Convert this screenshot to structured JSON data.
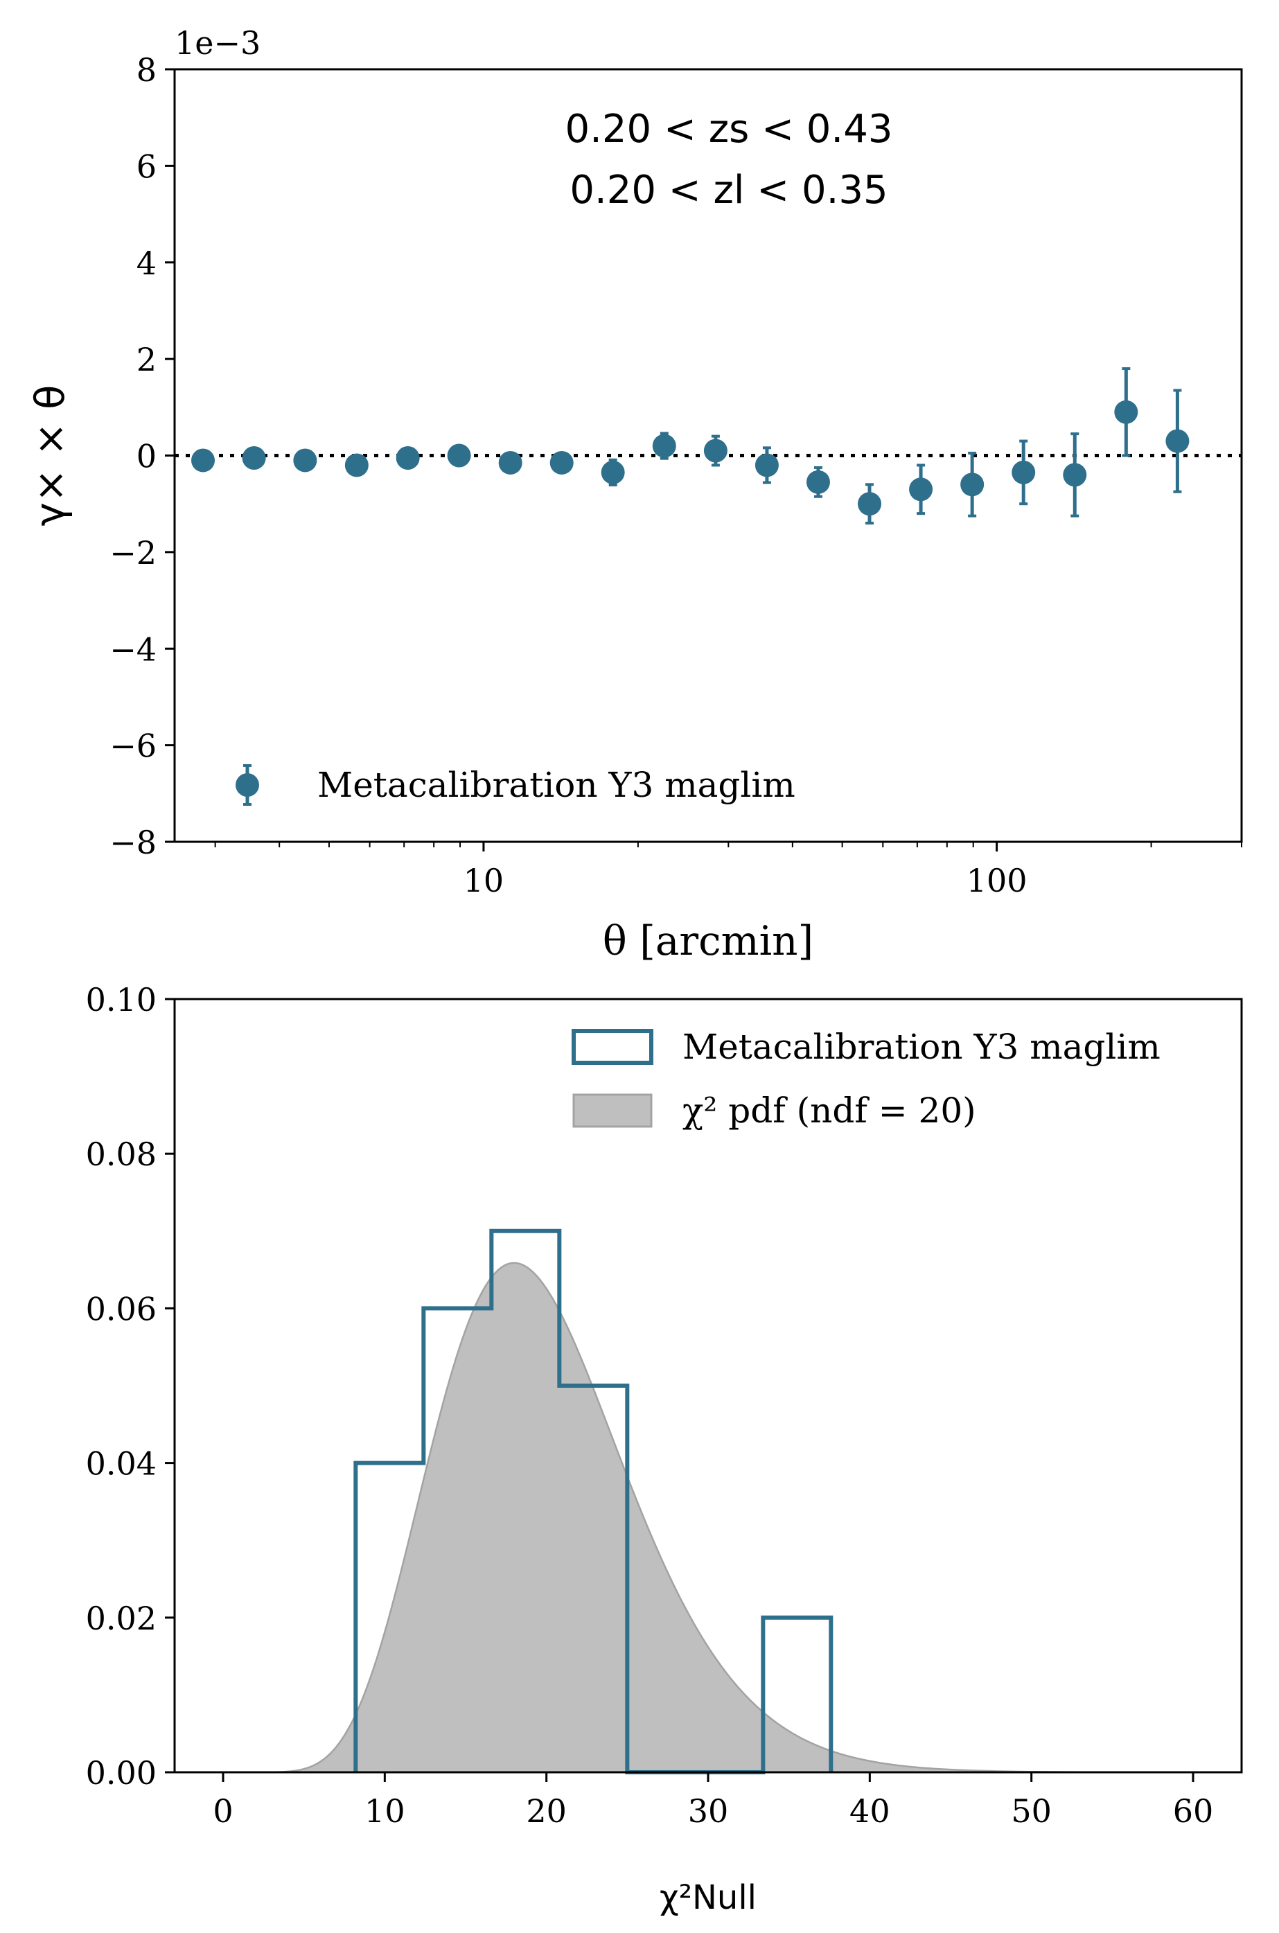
{
  "colors": {
    "series": "#2e6f8c",
    "pdf_fill": "#bfbfbf",
    "pdf_edge": "#a3a3a3",
    "axis": "#000000"
  },
  "chart_data": [
    {
      "type": "scatter",
      "title": "",
      "xlabel": "θ [arcmin]",
      "ylabel": "γ× × θ",
      "xscale": "log",
      "xlim": [
        2.5,
        300
      ],
      "ylim": [
        -0.008,
        0.008
      ],
      "offset_text": "1e−3",
      "xtick_labels": [
        "10",
        "100"
      ],
      "ytick_labels": [
        "8",
        "6",
        "4",
        "2",
        "0",
        "−2",
        "−4",
        "−6",
        "−8"
      ],
      "annotation_lines": [
        "0.20 < zs < 0.43",
        "0.20 < zl < 0.35"
      ],
      "reference_line": 0,
      "legend_position": "lower-left",
      "grid": false,
      "series": [
        {
          "name": "Metacalibration Y3 maglim",
          "x": [
            2.84,
            3.57,
            4.49,
            5.66,
            7.12,
            8.96,
            11.28,
            14.2,
            17.87,
            22.5,
            28.33,
            35.66,
            44.89,
            56.51,
            71.14,
            89.56,
            112.75,
            141.94,
            178.69,
            224.96
          ],
          "y": [
            -0.0001,
            -5e-05,
            -0.0001,
            -0.0002,
            -5e-05,
            0.0,
            -0.00015,
            -0.00015,
            -0.00035,
            0.0002,
            0.0001,
            -0.0002,
            -0.00055,
            -0.001,
            -0.0007,
            -0.0006,
            -0.00035,
            -0.0004,
            0.0009,
            0.0003
          ],
          "yerr": [
            8e-05,
            0.00012,
            8e-05,
            8e-05,
            0.0001,
            0.00012,
            0.00012,
            0.00016,
            0.00026,
            0.00026,
            0.0003,
            0.00036,
            0.0003,
            0.0004,
            0.0005,
            0.00065,
            0.00065,
            0.00085,
            0.0009,
            0.00105
          ]
        }
      ]
    },
    {
      "type": "histogram",
      "title": "",
      "xlabel": "χ²Null",
      "ylabel": "",
      "xlim": [
        -3,
        63
      ],
      "ylim": [
        0,
        0.1
      ],
      "xtick_labels": [
        "0",
        "10",
        "20",
        "30",
        "40",
        "50",
        "60"
      ],
      "ytick_labels": [
        "0.10",
        "0.08",
        "0.06",
        "0.04",
        "0.02",
        "0.00"
      ],
      "legend_position": "top-right",
      "grid": false,
      "histogram": {
        "name": "Metacalibration Y3 maglim",
        "bin_edges": [
          8.2,
          12.4,
          16.6,
          20.8,
          25.0,
          29.2,
          33.4,
          37.6
        ],
        "values": [
          0.04,
          0.06,
          0.07,
          0.05,
          0.0,
          0.0,
          0.02
        ]
      },
      "pdf": {
        "name": "χ² pdf (ndf = 20)",
        "ndf": 20
      }
    }
  ]
}
